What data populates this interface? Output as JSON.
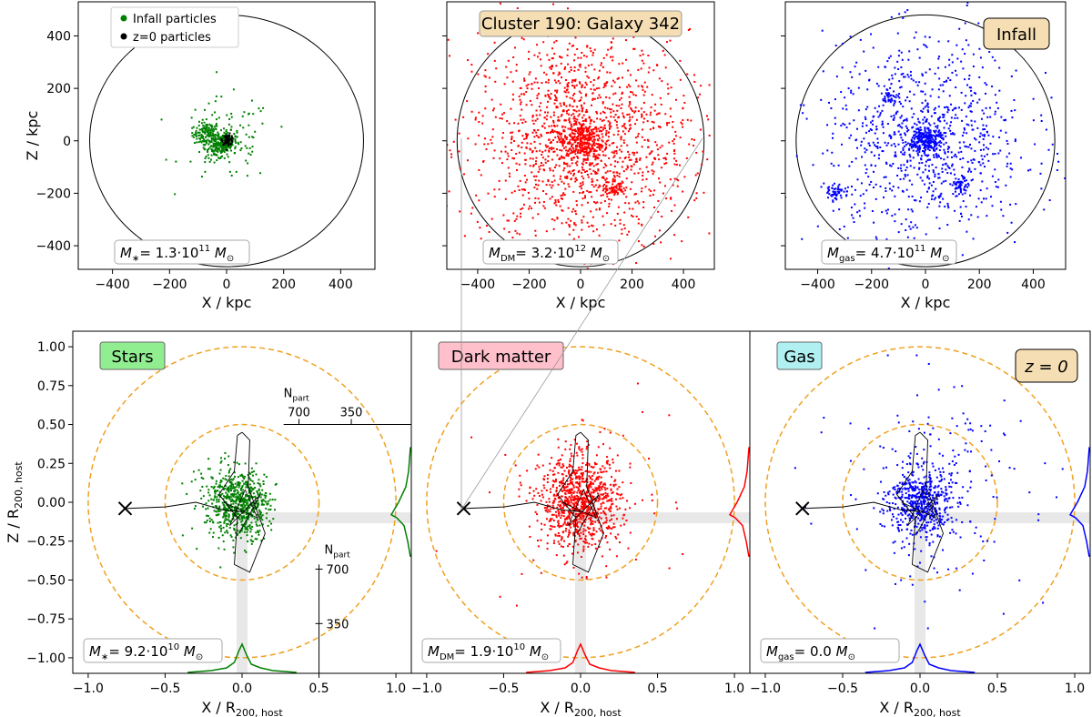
{
  "chart_data": [
    {
      "panel": "top-stars",
      "type": "scatter",
      "xlabel": "X / kpc",
      "ylabel": "Z / kpc",
      "xlim": [
        -520,
        520
      ],
      "ylim": [
        -490,
        530
      ],
      "xticks": [
        "−400",
        "−200",
        "0",
        "200",
        "400"
      ],
      "yticks": [
        "−400",
        "−200",
        "0",
        "200",
        "400"
      ],
      "legend": {
        "placement": "top-left",
        "entries": [
          "Infall particles",
          "z=0 particles"
        ],
        "colors": [
          "#008000",
          "#000000"
        ]
      },
      "mass_label": {
        "prefix": "M",
        "sub": "∗",
        "text": "= 1.3·10",
        "exp": "11",
        "unit": "M",
        "unit_sub": "⊙"
      },
      "series": [
        {
          "name": "Infall particles",
          "color": "#008000",
          "clusters": [
            {
              "x": -70,
              "y": 25,
              "spread": 22,
              "n": 130
            },
            {
              "x": 0,
              "y": 0,
              "spread": 18,
              "n": 140
            },
            {
              "x": -35,
              "y": -30,
              "spread": 20,
              "n": 90
            },
            {
              "x": 0,
              "y": 0,
              "spread": 80,
              "n": 110
            }
          ]
        },
        {
          "name": "z=0 particles",
          "color": "#000000",
          "clusters": [
            {
              "x": 5,
              "y": 5,
              "spread": 10,
              "n": 60
            }
          ]
        }
      ],
      "circle_radius": 480
    },
    {
      "panel": "top-dm",
      "type": "scatter",
      "xlabel": "X / kpc",
      "xlim": [
        -520,
        520
      ],
      "ylim": [
        -490,
        530
      ],
      "xticks": [
        "−400",
        "−200",
        "0",
        "200",
        "400"
      ],
      "title_box": "Cluster 190: Galaxy 342",
      "mass_label": {
        "prefix": "M",
        "sub": "DM",
        "text": "= 3.2·10",
        "exp": "12",
        "unit": "M",
        "unit_sub": "⊙"
      },
      "series": [
        {
          "name": "Dark matter",
          "color": "#ff0000",
          "clusters": [
            {
              "x": 0,
              "y": 0,
              "spread": 210,
              "n": 1500
            },
            {
              "x": 0,
              "y": 0,
              "spread": 40,
              "n": 300
            },
            {
              "x": 130,
              "y": -180,
              "spread": 20,
              "n": 60
            }
          ]
        }
      ],
      "circle_radius": 480
    },
    {
      "panel": "top-gas",
      "type": "scatter",
      "xlabel": "X / kpc",
      "xlim": [
        -520,
        520
      ],
      "ylim": [
        -490,
        530
      ],
      "xticks": [
        "−400",
        "−200",
        "0",
        "200",
        "400"
      ],
      "infall_box": "Infall",
      "mass_label": {
        "prefix": "M",
        "sub": "gas",
        "text": "= 4.7·10",
        "exp": "11",
        "unit": "M",
        "unit_sub": "⊙"
      },
      "series": [
        {
          "name": "Gas",
          "color": "#0000ff",
          "clusters": [
            {
              "x": 0,
              "y": 0,
              "spread": 190,
              "n": 900
            },
            {
              "x": 0,
              "y": 0,
              "spread": 30,
              "n": 250
            },
            {
              "x": -330,
              "y": -200,
              "spread": 15,
              "n": 50
            },
            {
              "x": 130,
              "y": -170,
              "spread": 15,
              "n": 50
            },
            {
              "x": -130,
              "y": 170,
              "spread": 15,
              "n": 30
            }
          ]
        }
      ],
      "circle_radius": 480
    },
    {
      "panel": "bottom-stars",
      "type": "scatter",
      "xlabel": "X / R200,host",
      "xlabel_main": "X / R",
      "xlabel_sub": "200, host",
      "ylabel_main": "Z / R",
      "ylabel_sub": "200, host",
      "xlim": [
        -1.1,
        1.1
      ],
      "ylim": [
        -1.1,
        1.1
      ],
      "xticks": [
        "−1.0",
        "−0.5",
        "0.0",
        "0.5",
        "1.0"
      ],
      "yticks": [
        "1.00",
        "0.75",
        "0.50",
        "0.25",
        "0.00",
        "−0.25",
        "−0.50",
        "−0.75",
        "−1.00"
      ],
      "species_box": "Stars",
      "species_color": "#90ee90",
      "npart_label": "N",
      "npart_sub": "part",
      "npart_ticks": [
        "700",
        "350"
      ],
      "mass_label": {
        "prefix": "M",
        "sub": "∗",
        "text": "= 9.2·10",
        "exp": "10",
        "unit": "M",
        "unit_sub": "⊙"
      },
      "series": [
        {
          "name": "Stars",
          "color": "#008000",
          "clusters": [
            {
              "x": 0,
              "y": -0.02,
              "spread": 0.09,
              "n": 500
            },
            {
              "x": -0.1,
              "y": 0.02,
              "spread": 0.12,
              "n": 200
            }
          ]
        }
      ],
      "histogram_color": "#008000"
    },
    {
      "panel": "bottom-dm",
      "type": "scatter",
      "xlabel_main": "X / R",
      "xlabel_sub": "200, host",
      "xlim": [
        -1.1,
        1.1
      ],
      "ylim": [
        -1.1,
        1.1
      ],
      "xticks": [
        "−1.0",
        "−0.5",
        "0.0",
        "0.5",
        "1.0"
      ],
      "species_box": "Dark matter",
      "species_color": "#ffc0cb",
      "mass_label": {
        "prefix": "M",
        "sub": "DM",
        "text": "= 1.9·10",
        "exp": "10",
        "unit": "M",
        "unit_sub": "⊙"
      },
      "series": [
        {
          "name": "Dark matter",
          "color": "#ff0000",
          "clusters": [
            {
              "x": 0,
              "y": 0,
              "spread": 0.13,
              "n": 900
            },
            {
              "x": 0,
              "y": 0,
              "spread": 0.3,
              "n": 80
            }
          ]
        }
      ],
      "histogram_color": "#ff0000"
    },
    {
      "panel": "bottom-gas",
      "type": "scatter",
      "xlabel_main": "X / R",
      "xlabel_sub": "200, host",
      "xlim": [
        -1.1,
        1.1
      ],
      "ylim": [
        -1.1,
        1.1
      ],
      "xticks": [
        "−1.0",
        "−0.5",
        "0.0",
        "0.5",
        "1.0"
      ],
      "species_box": "Gas",
      "species_color": "#b0f0f0",
      "z_box": "z = 0",
      "mass_label": {
        "prefix": "M",
        "sub": "gas",
        "text": "= 0.0 ",
        "exp": "",
        "unit": "M",
        "unit_sub": "⊙"
      },
      "series": [
        {
          "name": "Gas",
          "color": "#0000ff",
          "clusters": [
            {
              "x": 0,
              "y": 0,
              "spread": 0.1,
              "n": 500
            },
            {
              "x": 0.1,
              "y": 0.1,
              "spread": 0.3,
              "n": 200
            }
          ]
        }
      ],
      "histogram_color": "#0000ff"
    }
  ],
  "colors": {
    "orange_circle": "#f0a020",
    "gray_band": "#e8e8e8",
    "box_tan": "#f5deb3"
  }
}
